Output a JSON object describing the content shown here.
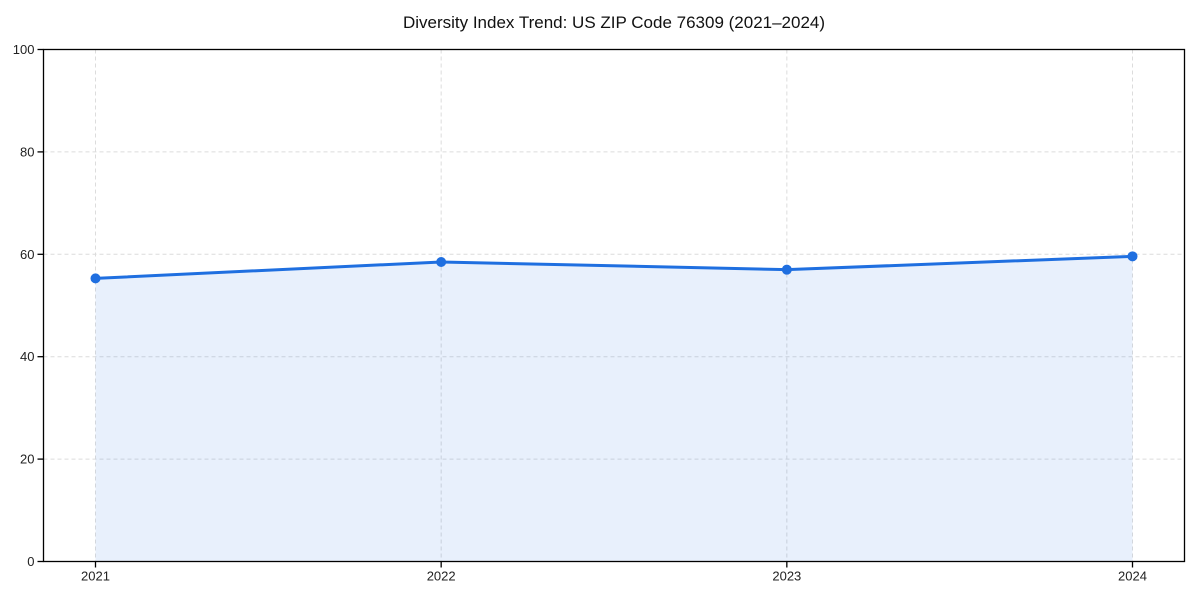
{
  "title": "Diversity Index Trend: US ZIP Code 76309 (2021–2024)",
  "colors": {
    "line": "#1f6fe0",
    "marker": "#1f6fe0",
    "fill": "rgba(31,111,224,0.10)",
    "grid": "#dcdcdc",
    "axis": "#000000",
    "tick_text": "#222222",
    "background": "#ffffff"
  },
  "chart_data": {
    "type": "area",
    "title": "Diversity Index Trend: US ZIP Code 76309 (2021–2024)",
    "categories": [
      "2021",
      "2022",
      "2023",
      "2024"
    ],
    "series": [
      {
        "name": "Diversity Index",
        "values": [
          55.3,
          58.5,
          57.0,
          59.6
        ]
      }
    ],
    "xlabel": "",
    "ylabel": "",
    "ylim": [
      0,
      100
    ],
    "yticks": [
      0,
      20,
      40,
      60,
      80,
      100
    ],
    "grid": "dashed",
    "legend": "none",
    "markers": true
  }
}
